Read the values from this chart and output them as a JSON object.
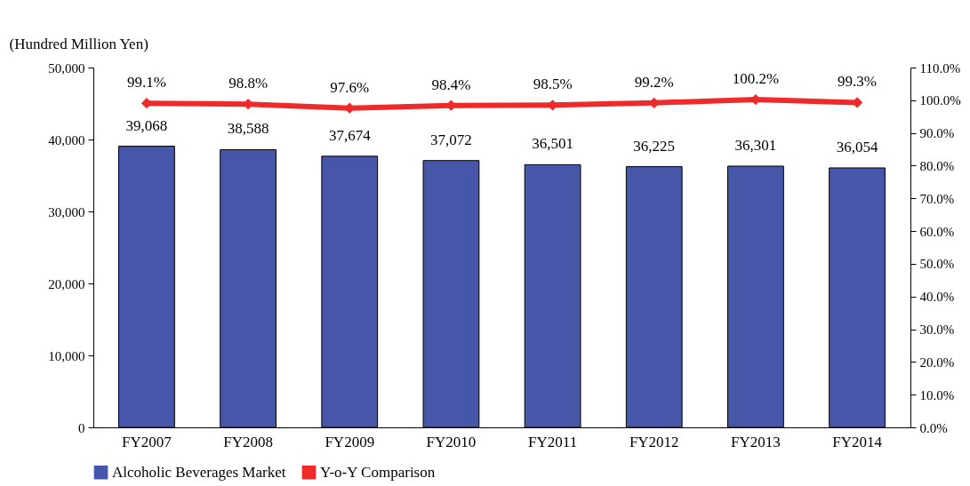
{
  "chart_data": {
    "type": "bar",
    "ylabel": "(Hundred Million Yen)",
    "categories": [
      "FY2007",
      "FY2008",
      "FY2009",
      "FY2010",
      "FY2011",
      "FY2012",
      "FY2013",
      "FY2014"
    ],
    "series": [
      {
        "name": "Alcoholic Beverages Market",
        "color": "#4656a8",
        "values": [
          39068,
          38588,
          37674,
          37072,
          36501,
          36225,
          36301,
          36054
        ],
        "value_labels": [
          "39,068",
          "38,588",
          "37,674",
          "37,072",
          "36,501",
          "36,225",
          "36,301",
          "36,054"
        ]
      },
      {
        "name": "Y-o-Y Comparison",
        "type": "line",
        "axis": "y2",
        "color": "#ee2a2a",
        "marker": "diamond",
        "values": [
          99.1,
          98.8,
          97.6,
          98.4,
          98.5,
          99.2,
          100.2,
          99.3
        ],
        "value_labels": [
          "99.1%",
          "98.8%",
          "97.6%",
          "98.4%",
          "98.5%",
          "99.2%",
          "100.2%",
          "99.3%"
        ]
      }
    ],
    "ylim": [
      0,
      50000
    ],
    "yticks": [
      {
        "value": 0,
        "label": "0"
      },
      {
        "value": 10000,
        "label": "10,000"
      },
      {
        "value": 20000,
        "label": "20,000"
      },
      {
        "value": 30000,
        "label": "30,000"
      },
      {
        "value": 40000,
        "label": "40,000"
      },
      {
        "value": 50000,
        "label": "50,000"
      }
    ],
    "y2lim": [
      0,
      110
    ],
    "y2ticks": [
      {
        "value": 0,
        "label": "0.0%"
      },
      {
        "value": 10,
        "label": "10.0%"
      },
      {
        "value": 20,
        "label": "20.0%"
      },
      {
        "value": 30,
        "label": "30.0%"
      },
      {
        "value": 40,
        "label": "40.0%"
      },
      {
        "value": 50,
        "label": "50.0%"
      },
      {
        "value": 60,
        "label": "60.0%"
      },
      {
        "value": 70,
        "label": "70.0%"
      },
      {
        "value": 80,
        "label": "80.0%"
      },
      {
        "value": 90,
        "label": "90.0%"
      },
      {
        "value": 100,
        "label": "100.0%"
      },
      {
        "value": 110,
        "label": "110.0%"
      }
    ],
    "legend": "bottom"
  }
}
